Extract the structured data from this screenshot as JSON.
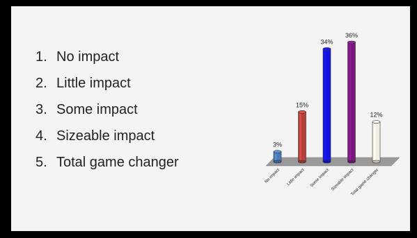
{
  "list": {
    "items": [
      {
        "num": "1.",
        "label": "No impact"
      },
      {
        "num": "2.",
        "label": "Little impact"
      },
      {
        "num": "3.",
        "label": "Some impact"
      },
      {
        "num": "4.",
        "label": "Sizeable impact"
      },
      {
        "num": "5.",
        "label": "Total game changer"
      }
    ]
  },
  "chart_data": {
    "type": "bar",
    "categories": [
      "No impact",
      "Little impact",
      "Some impact",
      "Sizeable impact",
      "Total game changer"
    ],
    "values": [
      3,
      15,
      34,
      36,
      12
    ],
    "data_labels": [
      "3%",
      "15%",
      "34%",
      "36%",
      "12%"
    ],
    "colors": [
      "#4a79b8",
      "#b5413c",
      "#1414e0",
      "#7a1880",
      "#f1efe3"
    ],
    "floor_color": "#9a9a9a",
    "ylim": [
      0,
      36
    ],
    "grid": false,
    "legend": "none",
    "title": "",
    "xlabel": "",
    "ylabel": ""
  }
}
